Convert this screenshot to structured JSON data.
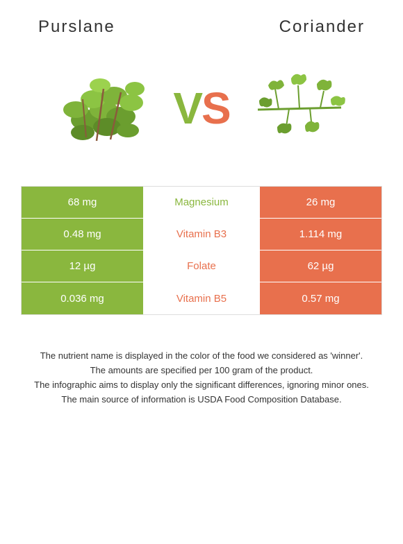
{
  "header": {
    "left_title": "Purslane",
    "right_title": "Coriander"
  },
  "vs": {
    "v": "V",
    "s": "S",
    "v_color": "#8ab73e",
    "s_color": "#e8704d"
  },
  "colors": {
    "left_bg": "#8ab73e",
    "right_bg": "#e8704d",
    "nutrient_green": "#8ab73e",
    "nutrient_orange": "#e8704d",
    "background": "#ffffff"
  },
  "comparison": {
    "rows": [
      {
        "left": "68 mg",
        "nutrient": "Magnesium",
        "right": "26 mg",
        "winner": "left"
      },
      {
        "left": "0.48 mg",
        "nutrient": "Vitamin B3",
        "right": "1.114 mg",
        "winner": "right"
      },
      {
        "left": "12 µg",
        "nutrient": "Folate",
        "right": "62 µg",
        "winner": "right"
      },
      {
        "left": "0.036 mg",
        "nutrient": "Vitamin B5",
        "right": "0.57 mg",
        "winner": "right"
      }
    ]
  },
  "footer": {
    "line1": "The nutrient name is displayed in the color of the food we considered as 'winner'.",
    "line2": "The amounts are specified per 100 gram of the product.",
    "line3": "The infographic aims to display only the significant differences, ignoring minor ones.",
    "line4": "The main source of information is USDA Food Composition Database."
  }
}
